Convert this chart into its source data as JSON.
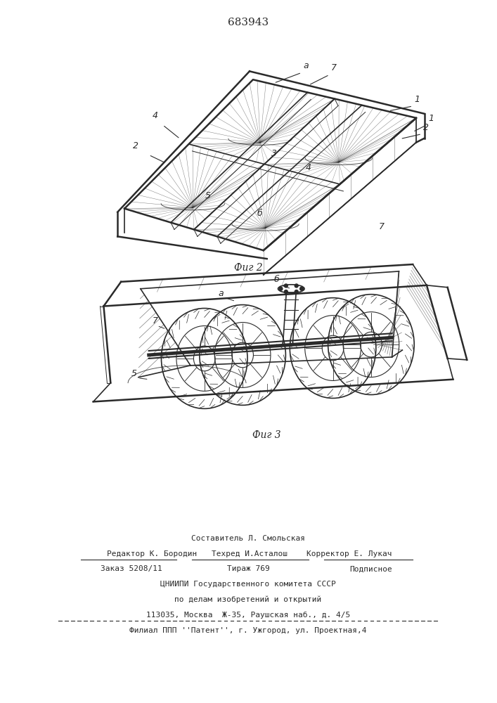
{
  "patent_number": "683943",
  "fig2_caption": "Фиг 2",
  "fig3_caption": "Фиг 3",
  "footer_line0": "Составитель Л. Смольская",
  "footer_line1_l": "Редактор К. Бородин",
  "footer_line1_m": "Техред И.Асталош",
  "footer_line1_r": "Корректор Е. Лукач",
  "footer_line2_l": "Заказ 5208/11",
  "footer_line2_m": "Тираж 769",
  "footer_line2_r": "Подписное",
  "footer_line3": "ЦНИИПИ Государственного комитета СССР",
  "footer_line4": "по делам изобретений и открытий",
  "footer_line5": "113035, Москва  Ж-35, Раушская наб., д. 4/5",
  "footer_line6": "Филиал ППП ''Патент'', г. Ужгород, ул. Проектная,4",
  "bg_color": "#ffffff",
  "line_color": "#2a2a2a"
}
